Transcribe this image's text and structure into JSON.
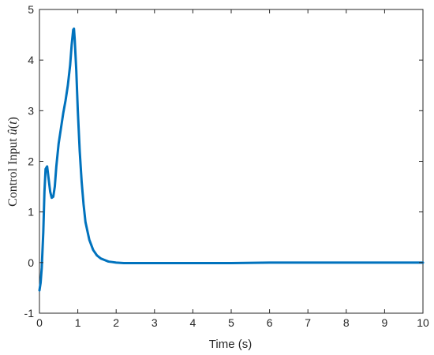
{
  "chart_data": {
    "type": "line",
    "title": "",
    "xlabel": "Time (s)",
    "ylabel_parts": [
      "Control Input ",
      "û",
      "(",
      "t",
      ")"
    ],
    "xlim": [
      0,
      10
    ],
    "ylim": [
      -1,
      5
    ],
    "xticks": [
      0,
      1,
      2,
      3,
      4,
      5,
      6,
      7,
      8,
      9,
      10
    ],
    "yticks": [
      -1,
      0,
      1,
      2,
      3,
      4,
      5
    ],
    "grid": false,
    "legend": "none",
    "series": [
      {
        "color": "#0072BD",
        "x": [
          0,
          0.03,
          0.06,
          0.1,
          0.13,
          0.16,
          0.2,
          0.24,
          0.28,
          0.32,
          0.36,
          0.4,
          0.44,
          0.5,
          0.56,
          0.62,
          0.68,
          0.74,
          0.8,
          0.84,
          0.88,
          0.9,
          0.92,
          0.96,
          1.0,
          1.05,
          1.1,
          1.15,
          1.2,
          1.3,
          1.4,
          1.5,
          1.6,
          1.7,
          1.8,
          1.9,
          2.0,
          2.2,
          2.5,
          3.0,
          4.0,
          5.0,
          6.0,
          7.0,
          8.0,
          9.0,
          10.0
        ],
        "y": [
          -0.55,
          -0.4,
          -0.1,
          0.6,
          1.4,
          1.85,
          1.9,
          1.65,
          1.4,
          1.28,
          1.3,
          1.5,
          1.9,
          2.35,
          2.65,
          2.95,
          3.2,
          3.5,
          3.9,
          4.3,
          4.6,
          4.62,
          4.4,
          3.8,
          3.0,
          2.2,
          1.6,
          1.15,
          0.8,
          0.45,
          0.25,
          0.14,
          0.08,
          0.05,
          0.02,
          0.01,
          0.0,
          -0.01,
          -0.01,
          -0.01,
          -0.01,
          -0.01,
          0.0,
          0.0,
          0.0,
          0.0,
          0.0
        ]
      }
    ]
  }
}
